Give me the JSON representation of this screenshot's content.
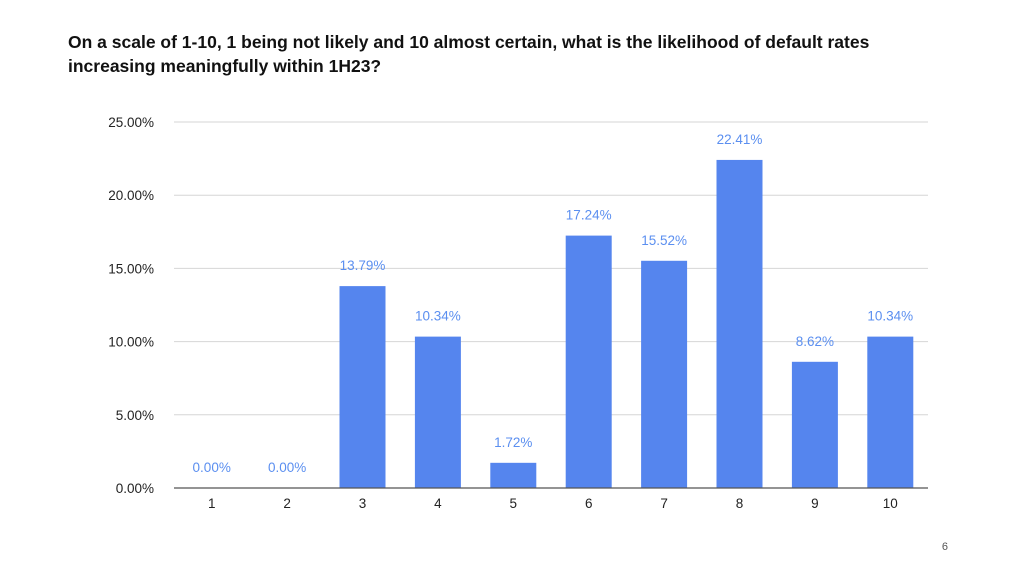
{
  "slide": {
    "page_number": "6"
  },
  "chart_data": {
    "type": "bar",
    "title": "On a scale of 1-10, 1 being not likely and 10 almost certain, what is the likelihood of default rates increasing meaningfully within 1H23?",
    "xlabel": "",
    "ylabel": "",
    "categories": [
      "1",
      "2",
      "3",
      "4",
      "5",
      "6",
      "7",
      "8",
      "9",
      "10"
    ],
    "values": [
      0,
      0,
      13.79,
      10.34,
      1.72,
      17.24,
      15.52,
      22.41,
      8.62,
      10.34
    ],
    "data_labels": [
      "0.00%",
      "0.00%",
      "13.79%",
      "10.34%",
      "1.72%",
      "17.24%",
      "15.52%",
      "22.41%",
      "8.62%",
      "10.34%"
    ],
    "ylim": [
      0,
      25
    ],
    "yticks": [
      0,
      5,
      10,
      15,
      20,
      25
    ],
    "ytick_labels": [
      "0.00%",
      "5.00%",
      "10.00%",
      "15.00%",
      "20.00%",
      "25.00%"
    ],
    "grid": true,
    "legend": "none",
    "colors": {
      "bar": "#5585ee",
      "data_label": "#5b8ff0",
      "grid": "#d6d6d6",
      "axis": "#555555"
    }
  }
}
